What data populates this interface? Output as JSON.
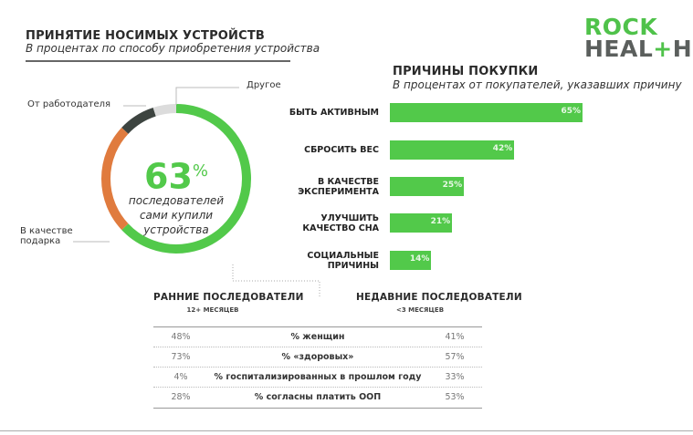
{
  "left": {
    "title": "ПРИНЯТИЕ НОСИМЫХ УСТРОЙСТВ",
    "subtitle": "В процентах по способу приобретения устройства",
    "center_value": "63",
    "center_unit": "%",
    "center_text": [
      "последователей",
      "сами купили",
      "устройства"
    ]
  },
  "logo": {
    "line1": "ROCK",
    "line2": "HEALTH"
  },
  "right": {
    "title": "ПРИЧИНЫ ПОКУПКИ",
    "subtitle": "В процентах от покупателей, указавших причину"
  },
  "table": {
    "early": {
      "title": "РАННИЕ ПОСЛЕДОВАТЕЛИ",
      "sub": "12+ МЕСЯЦЕВ"
    },
    "recent": {
      "title": "НЕДАВНИЕ ПОСЛЕДОВАТЕЛИ",
      "sub": "<3 МЕСЯЦЕВ"
    },
    "rows": [
      {
        "early": "48%",
        "label": "% женщин",
        "recent": "41%"
      },
      {
        "early": "73%",
        "label": "% «здоровых»",
        "recent": "57%"
      },
      {
        "early": "4%",
        "label": "% госпитализированных в прошлом году",
        "recent": "33%"
      },
      {
        "early": "28%",
        "label": "% согласны платить ООП",
        "recent": "53%"
      }
    ]
  },
  "chart_data": [
    {
      "type": "pie",
      "title": "ПРИНЯТИЕ НОСИМЫХ УСТРОЙСТВ",
      "slices": [
        {
          "label": "Сами купили",
          "value": 63,
          "color": "#52c94a"
        },
        {
          "label": "В качестве подарка",
          "value": 24,
          "color": "#e07b3e"
        },
        {
          "label": "От работодателя",
          "value": 8,
          "color": "#3d4440"
        },
        {
          "label": "Другое",
          "value": 5,
          "color": "#dcdcdc"
        }
      ],
      "labels_shown": [
        "Другое",
        "От работодателя",
        "В качестве подарка"
      ]
    },
    {
      "type": "bar",
      "title": "ПРИЧИНЫ ПОКУПКИ",
      "categories": [
        [
          "БЫТЬ АКТИВНЫМ"
        ],
        [
          "СБРОСИТЬ ВЕС"
        ],
        [
          "В КАЧЕСТВЕ",
          "ЭКСПЕРИМЕНТА"
        ],
        [
          "УЛУЧШИТЬ",
          "КАЧЕСТВО СНА"
        ],
        [
          "СОЦИАЛЬНЫЕ",
          "ПРИЧИНЫ"
        ]
      ],
      "values": [
        65,
        42,
        25,
        21,
        14
      ],
      "value_labels": [
        "65%",
        "42%",
        "25%",
        "21%",
        "14%"
      ],
      "color": "#52c94a",
      "xlim": [
        0,
        65
      ]
    }
  ]
}
